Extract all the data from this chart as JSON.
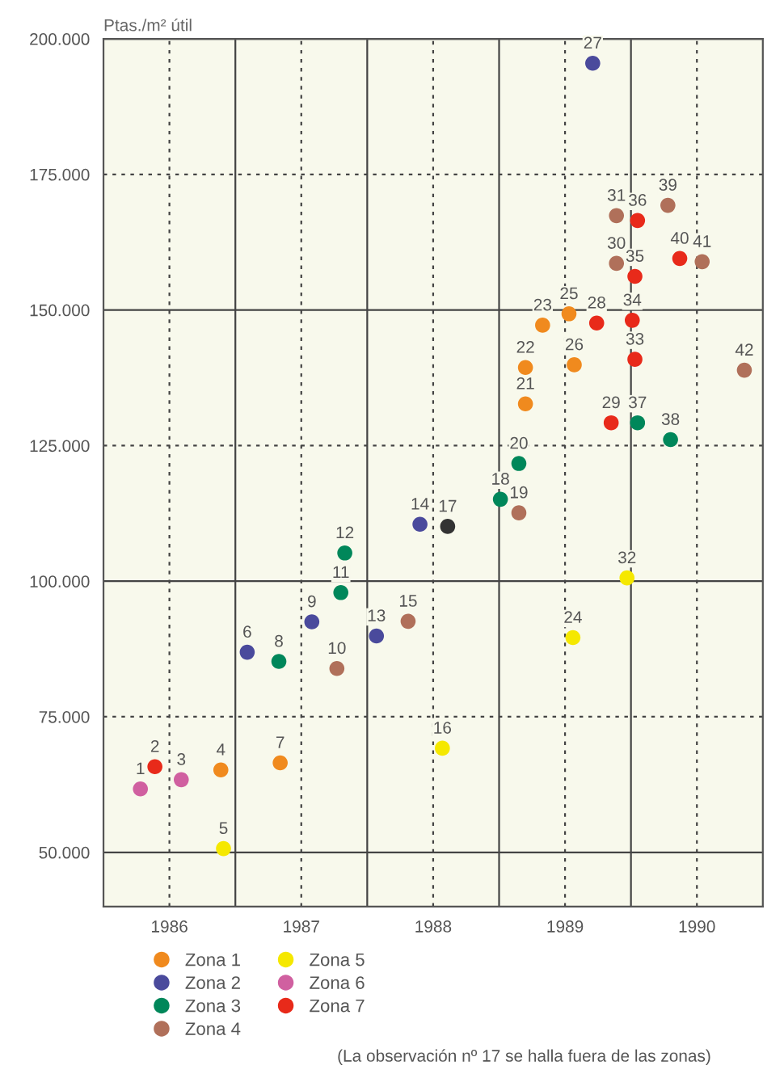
{
  "chart_data": {
    "type": "scatter",
    "ylabel": "Ptas./m² útil",
    "xlim": [
      1985.5,
      1990.5
    ],
    "ylim": [
      40000,
      200000
    ],
    "xticks": [
      1986,
      {
        "value": 1986.5,
        "label": null
      },
      1987,
      {
        "value": 1987.5,
        "label": null
      },
      1988,
      {
        "value": 1988.5,
        "label": null
      },
      1989,
      {
        "value": 1989.5,
        "label": null
      },
      1990
    ],
    "yticks": [
      {
        "value": 50000,
        "label": "50.000"
      },
      {
        "value": 75000,
        "label": "75.000"
      },
      {
        "value": 100000,
        "label": "100.000"
      },
      {
        "value": 125000,
        "label": "125.000"
      },
      {
        "value": 150000,
        "label": "150.000"
      },
      {
        "value": 175000,
        "label": "175.000"
      },
      {
        "value": 200000,
        "label": "200.000"
      }
    ],
    "grid": true,
    "legend": "bottom",
    "marker": "circle",
    "series": [
      {
        "name": "Zona 1",
        "color": "#f08a1e",
        "x": [
          1986.39,
          1986.84,
          1988.7,
          1988.7,
          1988.83,
          1989.03,
          1989.07
        ],
        "values": [
          65200,
          66500,
          132700,
          139400,
          147200,
          149300,
          139900
        ]
      },
      {
        "name": "Zona 2",
        "color": "#4a4a9c",
        "x": [
          1986.59,
          1987.08,
          1987.57,
          1987.9,
          1989.21
        ],
        "values": [
          86900,
          92500,
          89900,
          110500,
          195500
        ]
      },
      {
        "name": "Zona 3",
        "color": "#00875a",
        "x": [
          1986.83,
          1987.3,
          1987.33,
          1988.51,
          1988.65,
          1989.55,
          1989.8
        ],
        "values": [
          85200,
          97900,
          105200,
          115100,
          121700,
          129200,
          126100
        ]
      },
      {
        "name": "Zona 4",
        "color": "#b0705a",
        "x": [
          1987.27,
          1987.81,
          1988.65,
          1989.39,
          1989.39,
          1989.78,
          1990.04,
          1990.36
        ],
        "values": [
          83900,
          92600,
          112600,
          158600,
          167400,
          169300,
          158900,
          138900
        ]
      },
      {
        "name": "Zona 5",
        "color": "#f5e800",
        "x": [
          1986.41,
          1988.07,
          1989.06,
          1989.47
        ],
        "values": [
          50700,
          69200,
          89600,
          100600
        ]
      },
      {
        "name": "Zona 6",
        "color": "#d060a0",
        "x": [
          1985.78,
          1986.09
        ],
        "values": [
          61700,
          63400
        ]
      },
      {
        "name": "Zona 7",
        "color": "#e82a1a",
        "x": [
          1985.89,
          1989.24,
          1989.35,
          1989.53,
          1989.51,
          1989.53,
          1989.55,
          1989.87
        ],
        "values": [
          65800,
          147600,
          129200,
          140900,
          148100,
          156200,
          166500,
          159500
        ]
      },
      {
        "color": "#333333",
        "x": [
          1988.11
        ],
        "values": [
          110100
        ]
      }
    ],
    "annotations": [
      {
        "text": "5",
        "x": 1986.41,
        "y": 50700
      },
      {
        "text": "6",
        "x": 1986.59,
        "y": 86900
      },
      {
        "text": "7",
        "x": 1986.84,
        "y": 66500
      },
      {
        "text": "8",
        "x": 1986.83,
        "y": 85200
      },
      {
        "text": "9",
        "x": 1987.08,
        "y": 92500
      },
      {
        "text": "10",
        "x": 1987.27,
        "y": 83900
      },
      {
        "text": "11",
        "x": 1987.3,
        "y": 97900
      },
      {
        "text": "12",
        "x": 1987.33,
        "y": 105200
      },
      {
        "text": "13",
        "x": 1987.57,
        "y": 89900
      },
      {
        "text": "14",
        "x": 1987.9,
        "y": 110500
      },
      {
        "text": "15",
        "x": 1987.81,
        "y": 92600
      },
      {
        "text": "16",
        "x": 1988.07,
        "y": 69200
      },
      {
        "text": "17",
        "x": 1988.11,
        "y": 110100
      },
      {
        "text": "18",
        "x": 1988.51,
        "y": 115100
      },
      {
        "text": "19",
        "x": 1988.65,
        "y": 112600
      },
      {
        "text": "20",
        "x": 1988.65,
        "y": 121700
      },
      {
        "text": "21",
        "x": 1988.7,
        "y": 132700
      },
      {
        "text": "22",
        "x": 1988.7,
        "y": 139400
      },
      {
        "text": "23",
        "x": 1988.83,
        "y": 147200
      },
      {
        "text": "24",
        "x": 1989.06,
        "y": 89600
      },
      {
        "text": "25",
        "x": 1989.03,
        "y": 149300
      },
      {
        "text": "26",
        "x": 1989.07,
        "y": 139900
      },
      {
        "text": "27",
        "x": 1989.21,
        "y": 195500
      },
      {
        "text": "28",
        "x": 1989.24,
        "y": 147600
      },
      {
        "text": "29",
        "x": 1989.35,
        "y": 129200
      },
      {
        "text": "30",
        "x": 1989.39,
        "y": 158600
      },
      {
        "text": "31",
        "x": 1989.39,
        "y": 167400
      },
      {
        "text": "32",
        "x": 1989.47,
        "y": 100600
      },
      {
        "text": "33",
        "x": 1989.53,
        "y": 140900
      },
      {
        "text": "34",
        "x": 1989.51,
        "y": 148100
      },
      {
        "text": "35",
        "x": 1989.53,
        "y": 156200
      },
      {
        "text": "36",
        "x": 1989.55,
        "y": 166500
      },
      {
        "text": "37",
        "x": 1989.55,
        "y": 129200
      },
      {
        "text": "38",
        "x": 1989.8,
        "y": 126100
      },
      {
        "text": "39",
        "x": 1989.78,
        "y": 169300
      },
      {
        "text": "40",
        "x": 1989.87,
        "y": 159500
      },
      {
        "text": "41",
        "x": 1990.04,
        "y": 158900
      },
      {
        "text": "42",
        "x": 1990.36,
        "y": 138900
      },
      {
        "text": "1",
        "x": 1985.78,
        "y": 61700
      },
      {
        "text": "2",
        "x": 1985.89,
        "y": 65800
      },
      {
        "text": "3",
        "x": 1986.09,
        "y": 63400
      },
      {
        "text": "4",
        "x": 1986.39,
        "y": 65200
      },
      "(La observación nº 17 se halla fuera de las zonas)"
    ]
  }
}
